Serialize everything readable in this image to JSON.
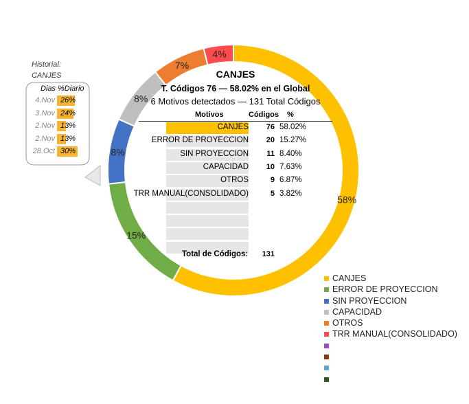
{
  "chart_data": {
    "type": "pie",
    "title": "CANJES",
    "subtitle": "T. Códigos 76 — 58.02% en el Global",
    "subtitle2": "6 Motivos detectados — 131 Total Códigos",
    "columns": [
      "Motivos",
      "Códigos",
      "%"
    ],
    "categories": [
      "CANJES",
      "ERROR DE PROYECCION",
      "SIN PROYECCION",
      "CAPACIDAD",
      "OTROS",
      "TRR MANUAL(CONSOLIDADO)"
    ],
    "values": [
      76,
      20,
      11,
      10,
      9,
      5
    ],
    "percent_labels": [
      "58.02%",
      "15.27%",
      "8.40%",
      "7.63%",
      "6.87%",
      "3.82%"
    ],
    "slice_labels": [
      "58%",
      "15%",
      "8%",
      "8%",
      "7%",
      "4%"
    ],
    "colors": [
      "#ffc000",
      "#70ad47",
      "#4472c4",
      "#bfbfbf",
      "#ed7d31",
      "#ff4b4b"
    ],
    "total_label": "Total de Códigos:",
    "total_value": "131",
    "legend": {
      "position": "bottom-right",
      "items": [
        "CANJES",
        "ERROR DE PROYECCION",
        "SIN PROYECCION",
        "CAPACIDAD",
        "OTROS",
        "TRR MANUAL(CONSOLIDADO)",
        "",
        "",
        "",
        ""
      ],
      "colors": [
        "#ffc000",
        "#70ad47",
        "#4472c4",
        "#bfbfbf",
        "#ed7d31",
        "#ff4b4b",
        "#9b4bc8",
        "#843c0c",
        "#5ba3d6",
        "#375623"
      ]
    }
  },
  "historial": {
    "title_line1": "Historial:",
    "title_line2": "CANJES",
    "col_dias": "Dias",
    "col_diario": "%Diario",
    "rows": [
      {
        "day": "4.Nov",
        "value": "26%",
        "fraction": 0.26
      },
      {
        "day": "3.Nov",
        "value": "24%",
        "fraction": 0.24
      },
      {
        "day": "2.Nov",
        "value": "13%",
        "fraction": 0.13
      },
      {
        "day": "2.Nov",
        "value": "13%",
        "fraction": 0.13
      },
      {
        "day": "28.Oct",
        "value": "30%",
        "fraction": 0.3
      }
    ]
  }
}
